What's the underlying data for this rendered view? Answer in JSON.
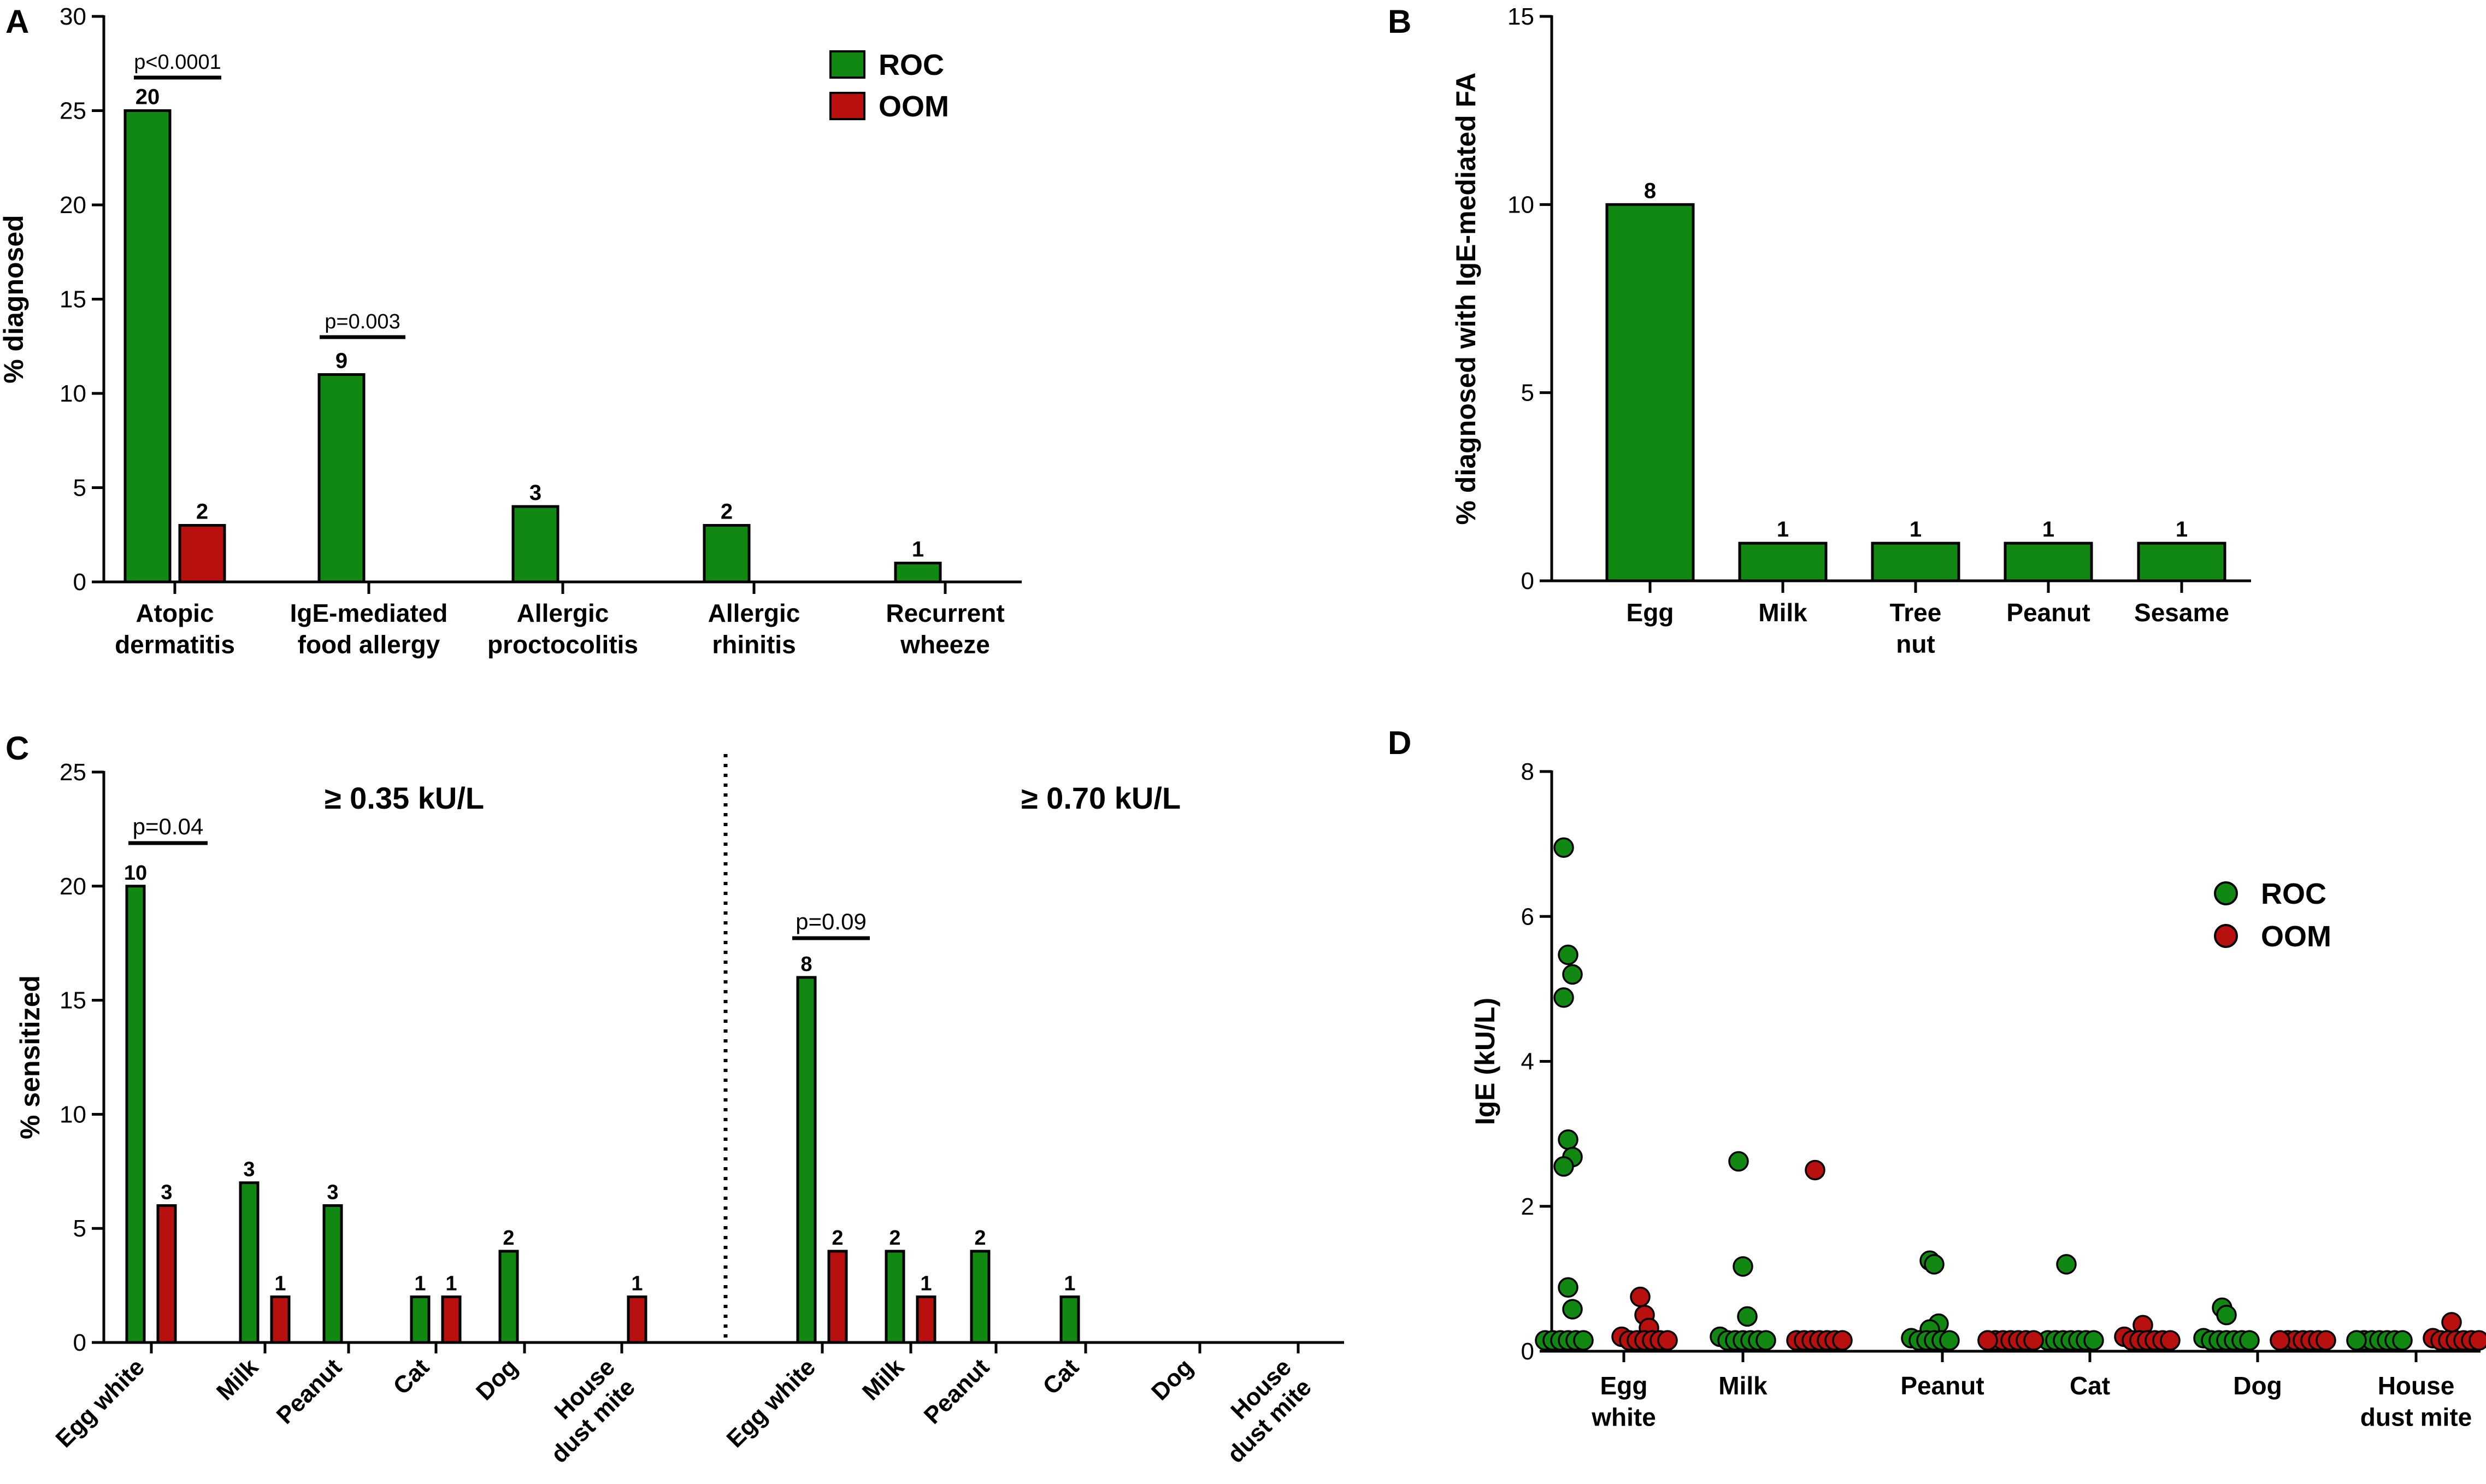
{
  "colors": {
    "roc": "#118811",
    "oom": "#b80f0f",
    "axis": "#000000"
  },
  "panels": {
    "A": {
      "letter": "A"
    },
    "B": {
      "letter": "B"
    },
    "C": {
      "letter": "C"
    },
    "D": {
      "letter": "D"
    }
  },
  "chart_data": [
    {
      "panel": "A",
      "type": "bar",
      "title": "",
      "xlabel": "",
      "ylabel": "% diagnosed",
      "ylim": [
        0,
        30
      ],
      "yticks": [
        "0",
        "5",
        "10",
        "15",
        "20",
        "25",
        "30"
      ],
      "legend": {
        "placement": "top-right",
        "entries": [
          "ROC",
          "OOM"
        ]
      },
      "categories": [
        [
          "Atopic",
          "dermatitis"
        ],
        [
          "IgE-mediated",
          "food allergy"
        ],
        [
          "Allergic",
          "proctocolitis"
        ],
        [
          "Allergic",
          "rhinitis"
        ],
        [
          "Recurrent",
          "wheeze"
        ]
      ],
      "series": [
        {
          "name": "ROC",
          "values": [
            25,
            11,
            4,
            3,
            1
          ],
          "counts": [
            "20",
            "9",
            "3",
            "2",
            "1"
          ]
        },
        {
          "name": "OOM",
          "values": [
            3,
            0,
            0,
            0,
            0
          ],
          "counts": [
            "2",
            "",
            "",
            "",
            ""
          ]
        }
      ],
      "annotations": [
        {
          "text": "p<0.0001",
          "category": 0
        },
        {
          "text": "p=0.003",
          "category": 1
        }
      ]
    },
    {
      "panel": "B",
      "type": "bar",
      "title": "",
      "xlabel": "",
      "ylabel": "% diagnosed with IgE-mediated FA",
      "ylim": [
        0,
        15
      ],
      "yticks": [
        "0",
        "5",
        "10",
        "15"
      ],
      "categories": [
        [
          "Egg"
        ],
        [
          "Milk"
        ],
        [
          "Tree",
          "nut"
        ],
        [
          "Peanut"
        ],
        [
          "Sesame"
        ]
      ],
      "series": [
        {
          "name": "ROC",
          "values": [
            10,
            1,
            1,
            1,
            1
          ],
          "counts": [
            "8",
            "1",
            "1",
            "1",
            "1"
          ]
        }
      ]
    },
    {
      "panel": "C",
      "type": "bar",
      "title": "",
      "xlabel": "",
      "ylabel": "% sensitized",
      "ylim": [
        0,
        25
      ],
      "yticks": [
        "0",
        "5",
        "10",
        "15",
        "20",
        "25"
      ],
      "groups": [
        {
          "label": "≥ 0.35 kU/L",
          "categories": [
            [
              "Egg white"
            ],
            [
              "Milk"
            ],
            [
              "Peanut"
            ],
            [
              "Cat"
            ],
            [
              "Dog"
            ],
            [
              "House",
              "dust mite"
            ]
          ],
          "series": [
            {
              "name": "ROC",
              "values": [
                20,
                7,
                6,
                2,
                4,
                0
              ],
              "counts": [
                "10",
                "3",
                "3",
                "1",
                "2",
                ""
              ]
            },
            {
              "name": "OOM",
              "values": [
                6,
                2,
                0,
                2,
                0,
                2
              ],
              "counts": [
                "3",
                "1",
                "",
                "1",
                "",
                "1"
              ]
            }
          ],
          "annotation": {
            "text": "p=0.04",
            "category": 0
          }
        },
        {
          "label": "≥ 0.70 kU/L",
          "categories": [
            [
              "Egg white"
            ],
            [
              "Milk"
            ],
            [
              "Peanut"
            ],
            [
              "Cat"
            ],
            [
              "Dog"
            ],
            [
              "House",
              "dust mite"
            ]
          ],
          "series": [
            {
              "name": "ROC",
              "values": [
                16,
                4,
                4,
                2,
                0,
                0
              ],
              "counts": [
                "8",
                "2",
                "2",
                "1",
                "",
                ""
              ]
            },
            {
              "name": "OOM",
              "values": [
                4,
                2,
                0,
                0,
                0,
                0
              ],
              "counts": [
                "2",
                "1",
                "",
                "",
                "",
                ""
              ]
            }
          ],
          "annotation": {
            "text": "p=0.09",
            "category": 0
          }
        }
      ]
    },
    {
      "panel": "D",
      "type": "scatter",
      "title": "",
      "xlabel": "",
      "ylabel": "IgE (kU/L)",
      "ylim": [
        0,
        8
      ],
      "yticks": [
        "0",
        "2",
        "4",
        "6",
        "8"
      ],
      "legend": {
        "placement": "top-right",
        "entries": [
          "ROC",
          "OOM"
        ]
      },
      "categories": [
        [
          "Egg",
          "white"
        ],
        [
          "Milk"
        ],
        [
          "Peanut"
        ],
        [
          "Cat"
        ],
        [
          "Dog"
        ],
        [
          "House",
          "dust mite"
        ]
      ],
      "series": [
        {
          "name": "ROC",
          "points": [
            [
              6.95,
              5.47,
              5.2,
              4.88,
              2.92,
              2.68,
              2.55,
              0.88,
              0.58,
              0.15,
              0.15,
              0.15,
              0.15,
              0.15,
              0.15
            ],
            [
              2.62,
              1.17,
              0.48,
              0.2,
              0.15,
              0.15,
              0.15,
              0.15,
              0.15,
              0.15
            ],
            [
              1.25,
              1.2,
              0.38,
              0.3,
              0.18,
              0.15,
              0.15,
              0.15,
              0.15,
              0.15
            ],
            [
              1.2,
              0.15,
              0.15,
              0.15,
              0.15,
              0.15,
              0.15,
              0.15
            ],
            [
              0.6,
              0.5,
              0.18,
              0.15,
              0.15,
              0.15,
              0.15,
              0.15,
              0.15
            ],
            [
              0.15,
              0.15,
              0.15,
              0.15,
              0.15,
              0.15,
              0.15,
              0.15
            ]
          ]
        },
        {
          "name": "OOM",
          "points": [
            [
              0.75,
              0.5,
              0.32,
              0.2,
              0.15,
              0.15,
              0.15,
              0.15,
              0.15,
              0.15
            ],
            [
              2.5,
              0.15,
              0.15,
              0.15,
              0.15,
              0.15,
              0.15,
              0.15
            ],
            [
              0.15,
              0.15,
              0.15,
              0.15,
              0.15,
              0.15,
              0.15,
              0.15
            ],
            [
              0.36,
              0.2,
              0.15,
              0.15,
              0.15,
              0.15,
              0.15,
              0.15
            ],
            [
              0.15,
              0.15,
              0.15,
              0.15,
              0.15,
              0.15,
              0.15,
              0.15
            ],
            [
              0.4,
              0.18,
              0.15,
              0.15,
              0.15,
              0.15,
              0.15,
              0.15
            ]
          ]
        }
      ]
    }
  ]
}
